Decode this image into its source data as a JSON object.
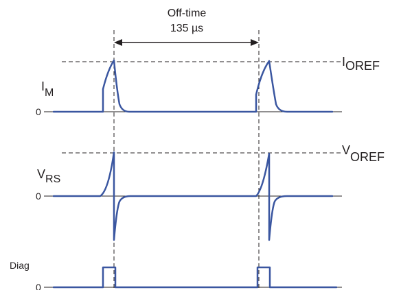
{
  "offtime": {
    "title": "Off-time",
    "value": "135 µs"
  },
  "traces": {
    "im": {
      "label": "I",
      "sub": "M",
      "zero": "0",
      "ref_label": "I",
      "ref_sub": "OREF"
    },
    "vrs": {
      "label": "V",
      "sub": "RS",
      "zero": "0",
      "ref_label": "V",
      "ref_sub": "OREF"
    },
    "diag": {
      "label": "Diag",
      "zero": "0"
    }
  },
  "colors": {
    "wave": "#3a56a0",
    "ink": "#231f20"
  }
}
